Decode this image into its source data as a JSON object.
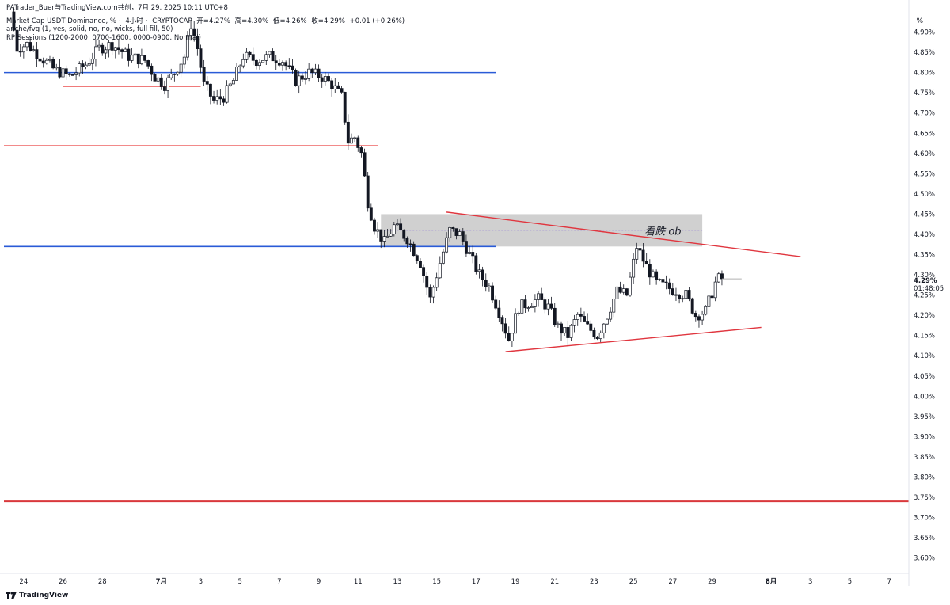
{
  "header": {
    "attribution": "PATrader_Buer与TradingView.com共创，7月 29, 2025 10:11 UTC+8",
    "symbol": "Market Cap USDT Dominance, %",
    "interval": "4小时",
    "exchange": "CRYPTOCAP",
    "ohlc": {
      "open": "开=4.27%",
      "high": "高=4.30%",
      "low": "低=4.26%",
      "close": "收=4.29%",
      "change": "+0.01 (+0.26%)"
    },
    "indicators": [
      "anche/fvg (1, yes, solid, no, no, wicks, full fill, 50)",
      "RP Sessions (1200-2000, 0700-1600, 0000-0900, Normal)"
    ]
  },
  "price_axis": {
    "unit": "%",
    "labels": [
      "4.90%",
      "4.85%",
      "4.80%",
      "4.75%",
      "4.70%",
      "4.65%",
      "4.60%",
      "4.55%",
      "4.50%",
      "4.45%",
      "4.40%",
      "4.35%",
      "4.30%",
      "4.25%",
      "4.20%",
      "4.15%",
      "4.10%",
      "4.05%",
      "4.00%",
      "3.95%",
      "3.90%",
      "3.85%",
      "3.80%",
      "3.75%",
      "3.70%",
      "3.65%",
      "3.60%"
    ],
    "current_price": "4.29%",
    "countdown": "01:48:05"
  },
  "time_axis": {
    "labels": [
      "24",
      "26",
      "28",
      "7月",
      "3",
      "5",
      "7",
      "9",
      "11",
      "13",
      "15",
      "17",
      "19",
      "21",
      "23",
      "25",
      "27",
      "29",
      "8月",
      "3",
      "5",
      "7"
    ]
  },
  "logo": {
    "text": "TradingView"
  },
  "chart_data": {
    "type": "candlestick",
    "ylim": [
      3.57,
      4.95
    ],
    "x_range": [
      "2025-06-23",
      "2025-08-08"
    ],
    "price_ticks": [
      4.9,
      4.85,
      4.8,
      4.75,
      4.7,
      4.65,
      4.6,
      4.55,
      4.5,
      4.45,
      4.4,
      4.35,
      4.3,
      4.25,
      4.2,
      4.15,
      4.1,
      4.05,
      4.0,
      3.95,
      3.9,
      3.85,
      3.8,
      3.75,
      3.7,
      3.65,
      3.6
    ],
    "date_ticks": [
      {
        "label": "24",
        "date": "2025-06-24"
      },
      {
        "label": "26",
        "date": "2025-06-26"
      },
      {
        "label": "28",
        "date": "2025-06-28"
      },
      {
        "label": "7月",
        "date": "2025-07-01"
      },
      {
        "label": "3",
        "date": "2025-07-03"
      },
      {
        "label": "5",
        "date": "2025-07-05"
      },
      {
        "label": "7",
        "date": "2025-07-07"
      },
      {
        "label": "9",
        "date": "2025-07-09"
      },
      {
        "label": "11",
        "date": "2025-07-11"
      },
      {
        "label": "13",
        "date": "2025-07-13"
      },
      {
        "label": "15",
        "date": "2025-07-15"
      },
      {
        "label": "17",
        "date": "2025-07-17"
      },
      {
        "label": "19",
        "date": "2025-07-19"
      },
      {
        "label": "21",
        "date": "2025-07-21"
      },
      {
        "label": "23",
        "date": "2025-07-23"
      },
      {
        "label": "25",
        "date": "2025-07-25"
      },
      {
        "label": "27",
        "date": "2025-07-27"
      },
      {
        "label": "29",
        "date": "2025-07-29"
      },
      {
        "label": "8月",
        "date": "2025-08-01"
      },
      {
        "label": "3",
        "date": "2025-08-03"
      },
      {
        "label": "5",
        "date": "2025-08-05"
      },
      {
        "label": "7",
        "date": "2025-08-07"
      }
    ],
    "price_path": [
      [
        "2025-06-23 12:00",
        4.95
      ],
      [
        "2025-06-23 20:00",
        4.86
      ],
      [
        "2025-06-24 08:00",
        4.87
      ],
      [
        "2025-06-25 00:00",
        4.84
      ],
      [
        "2025-06-25 16:00",
        4.81
      ],
      [
        "2025-06-26 12:00",
        4.79
      ],
      [
        "2025-06-27 08:00",
        4.82
      ],
      [
        "2025-06-28 00:00",
        4.86
      ],
      [
        "2025-06-28 16:00",
        4.87
      ],
      [
        "2025-06-29 12:00",
        4.84
      ],
      [
        "2025-06-30 08:00",
        4.83
      ],
      [
        "2025-06-30 20:00",
        4.79
      ],
      [
        "2025-07-01 08:00",
        4.77
      ],
      [
        "2025-07-01 20:00",
        4.8
      ],
      [
        "2025-07-02 08:00",
        4.84
      ],
      [
        "2025-07-02 16:00",
        4.92
      ],
      [
        "2025-07-03 00:00",
        4.86
      ],
      [
        "2025-07-03 08:00",
        4.77
      ],
      [
        "2025-07-03 20:00",
        4.73
      ],
      [
        "2025-07-04 08:00",
        4.74
      ],
      [
        "2025-07-04 20:00",
        4.78
      ],
      [
        "2025-07-05 08:00",
        4.84
      ],
      [
        "2025-07-06 00:00",
        4.83
      ],
      [
        "2025-07-06 16:00",
        4.84
      ],
      [
        "2025-07-07 08:00",
        4.83
      ],
      [
        "2025-07-08 00:00",
        4.78
      ],
      [
        "2025-07-08 16:00",
        4.8
      ],
      [
        "2025-07-09 08:00",
        4.79
      ],
      [
        "2025-07-09 20:00",
        4.77
      ],
      [
        "2025-07-10 08:00",
        4.74
      ],
      [
        "2025-07-10 16:00",
        4.63
      ],
      [
        "2025-07-11 00:00",
        4.64
      ],
      [
        "2025-07-11 08:00",
        4.6
      ],
      [
        "2025-07-11 16:00",
        4.48
      ],
      [
        "2025-07-12 00:00",
        4.42
      ],
      [
        "2025-07-12 12:00",
        4.38
      ],
      [
        "2025-07-13 00:00",
        4.42
      ],
      [
        "2025-07-13 16:00",
        4.39
      ],
      [
        "2025-07-14 08:00",
        4.33
      ],
      [
        "2025-07-14 20:00",
        4.24
      ],
      [
        "2025-07-15 08:00",
        4.33
      ],
      [
        "2025-07-15 20:00",
        4.41
      ],
      [
        "2025-07-16 08:00",
        4.4
      ],
      [
        "2025-07-16 20:00",
        4.35
      ],
      [
        "2025-07-17 08:00",
        4.3
      ],
      [
        "2025-07-17 20:00",
        4.27
      ],
      [
        "2025-07-18 08:00",
        4.21
      ],
      [
        "2025-07-18 20:00",
        4.14
      ],
      [
        "2025-07-19 08:00",
        4.22
      ],
      [
        "2025-07-19 20:00",
        4.23
      ],
      [
        "2025-07-20 08:00",
        4.24
      ],
      [
        "2025-07-20 20:00",
        4.22
      ],
      [
        "2025-07-21 08:00",
        4.17
      ],
      [
        "2025-07-21 20:00",
        4.15
      ],
      [
        "2025-07-22 08:00",
        4.2
      ],
      [
        "2025-07-22 20:00",
        4.17
      ],
      [
        "2025-07-23 08:00",
        4.15
      ],
      [
        "2025-07-23 20:00",
        4.2
      ],
      [
        "2025-07-24 08:00",
        4.26
      ],
      [
        "2025-07-24 20:00",
        4.25
      ],
      [
        "2025-07-25 08:00",
        4.37
      ],
      [
        "2025-07-25 20:00",
        4.32
      ],
      [
        "2025-07-26 08:00",
        4.28
      ],
      [
        "2025-07-26 20:00",
        4.27
      ],
      [
        "2025-07-27 08:00",
        4.26
      ],
      [
        "2025-07-27 20:00",
        4.25
      ],
      [
        "2025-07-28 08:00",
        4.2
      ],
      [
        "2025-07-28 20:00",
        4.21
      ],
      [
        "2025-07-29 08:00",
        4.28
      ],
      [
        "2025-07-29 12:00",
        4.29
      ]
    ],
    "horizontal_lines": [
      {
        "price": 4.8,
        "from": "2025-06-23",
        "to": "2025-07-18",
        "color": "#2a5bd7"
      },
      {
        "price": 4.37,
        "from": "2025-06-23",
        "to": "2025-07-18",
        "color": "#2a5bd7"
      },
      {
        "price": 4.765,
        "from": "2025-06-26",
        "to": "2025-07-03",
        "color": "#f07a7a"
      },
      {
        "price": 4.62,
        "from": "2025-06-23",
        "to": "2025-07-12",
        "color": "#f07a7a"
      },
      {
        "price": 3.74,
        "from": "2025-06-23",
        "to": "2025-08-08",
        "color": "#d9383c"
      }
    ],
    "trendlines": [
      {
        "from": [
          "2025-07-15 12:00",
          4.455
        ],
        "to": [
          "2025-08-02 12:00",
          4.345
        ],
        "color": "#e0363f"
      },
      {
        "from": [
          "2025-07-18 12:00",
          4.11
        ],
        "to": [
          "2025-07-31 12:00",
          4.17
        ],
        "color": "#e0363f"
      }
    ],
    "zone": {
      "from": "2025-07-12 04:00",
      "to": "2025-07-28 12:00",
      "high": 4.45,
      "low": 4.37,
      "color": "#c8c8c8",
      "mid_line": 4.41
    },
    "annotations": [
      {
        "text": "看跌 ob",
        "date": "2025-07-26 12:00",
        "price": 4.407
      }
    ],
    "current_price": {
      "value": 4.29,
      "line_color": "#b0b0b0"
    },
    "grid": false
  }
}
